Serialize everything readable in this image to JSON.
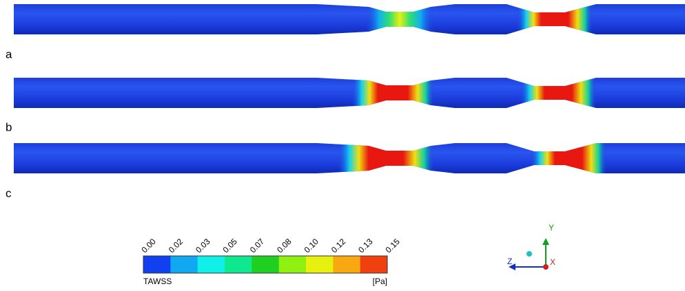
{
  "panels": [
    {
      "label": "a"
    },
    {
      "label": "b"
    },
    {
      "label": "c"
    }
  ],
  "colorbar": {
    "ticks": [
      "0.00",
      "0.02",
      "0.03",
      "0.05",
      "0.07",
      "0.08",
      "0.10",
      "0.12",
      "0.13",
      "0.15"
    ],
    "colors": [
      "#1040f0",
      "#10a8f0",
      "#10f0e8",
      "#10e890",
      "#20d020",
      "#90f010",
      "#e8f010",
      "#f8a810",
      "#f04010"
    ],
    "title": "TAWSS",
    "unit": "[Pa]"
  },
  "axes": {
    "y": "Y",
    "z": "Z",
    "x": "X"
  }
}
